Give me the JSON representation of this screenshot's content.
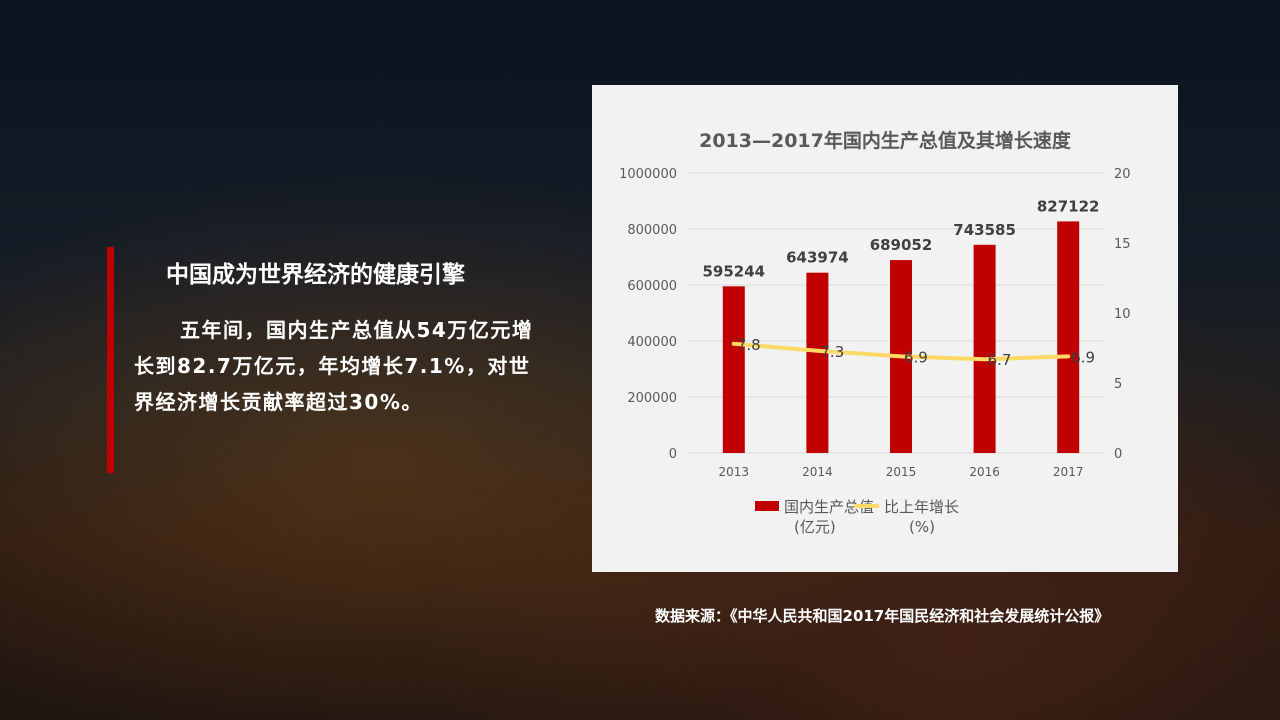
{
  "left": {
    "heading": "中国成为世界经济的健康引擎",
    "body": "五年间，国内生产总值从54万亿元增长到82.7万亿元，年均增长7.1%，对世界经济增长贡献率超过30%。"
  },
  "source": "数据来源：《中华人民共和国2017年国民经济和社会发展统计公报》",
  "chart_data": {
    "type": "bar",
    "title": "2013—2017年国内生产总值及其增长速度",
    "categories": [
      "2013",
      "2014",
      "2015",
      "2016",
      "2017"
    ],
    "series": [
      {
        "name": "国内生产总值(亿元)",
        "type": "bar",
        "axis": "left",
        "color": "#c00000",
        "values": [
          595244,
          643974,
          689052,
          743585,
          827122
        ],
        "labels": [
          "595244",
          "643974",
          "689052",
          "743585",
          "827122"
        ]
      },
      {
        "name": "比上年增长(%)",
        "type": "line",
        "axis": "right",
        "color": "#ffd966",
        "values": [
          7.8,
          7.3,
          6.9,
          6.7,
          6.9
        ],
        "labels": [
          "7.8",
          "7.3",
          "6.9",
          "6.7",
          "6.9"
        ]
      }
    ],
    "ylim": [
      0,
      1000000
    ],
    "yticks": [
      "0",
      "200000",
      "400000",
      "600000",
      "800000",
      "1000000"
    ],
    "y2lim": [
      0,
      20
    ],
    "y2ticks": [
      "0",
      "5",
      "10",
      "15",
      "20"
    ],
    "legend": {
      "placement": "bottom",
      "items": [
        [
          "国内生产总值",
          "(亿元)"
        ],
        [
          "比上年增长",
          "(%)"
        ]
      ]
    },
    "grid": true
  }
}
